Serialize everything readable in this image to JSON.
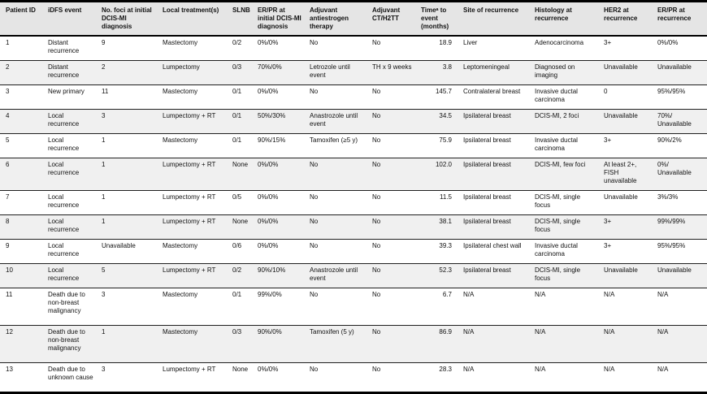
{
  "colors": {
    "header_bg": "#e5e5e5",
    "alt_row_bg": "#f0f0f0",
    "rule": "#1f1f1f"
  },
  "table": {
    "columns": [
      "Patient ID",
      "iDFS event",
      "No. foci at initial DCIS-MI diagnosis",
      "Local treatment(s)",
      "SLNB",
      "ER/PR at initial DCIS-MI diagnosis",
      "Adjuvant antiestrogen therapy",
      "Adjuvant CT/H2TT",
      "Timeᵃ to event (months)",
      "Site of recurrence",
      "Histology at recurrence",
      "HER2 at recurrence",
      "ER/PR at recurrence"
    ],
    "time_column_index": 8,
    "rows": [
      [
        "1",
        "Distant recurrence",
        "9",
        "Mastectomy",
        "0/2",
        "0%/0%",
        "No",
        "No",
        "18.9",
        "Liver",
        "Adenocarcinoma",
        "3+",
        "0%/0%"
      ],
      [
        "2",
        "Distant recurrence",
        "2",
        "Lumpectomy",
        "0/3",
        "70%/0%",
        "Letrozole until event",
        "TH x 9 weeks",
        "3.8",
        "Leptomeningeal",
        "Diagnosed on imaging",
        "Unavailable",
        "Unavailable"
      ],
      [
        "3",
        "New primary",
        "11",
        "Mastectomy",
        "0/1",
        "0%/0%",
        "No",
        "No",
        "145.7",
        "Contralateral breast",
        "Invasive ductal carcinoma",
        "0",
        "95%/95%"
      ],
      [
        "4",
        "Local recurrence",
        "3",
        "Lumpectomy + RT",
        "0/1",
        "50%/30%",
        "Anastrozole until event",
        "No",
        "34.5",
        "Ipsilateral breast",
        "DCIS-MI, 2 foci",
        "Unavailable",
        "70%/ Unavailable"
      ],
      [
        "5",
        "Local recurrence",
        "1",
        "Mastectomy",
        "0/1",
        "90%/15%",
        "Tamoxifen (≥5 y)",
        "No",
        "75.9",
        "Ipsilateral breast",
        "Invasive ductal carcinoma",
        "3+",
        "90%/2%"
      ],
      [
        "6",
        "Local recurrence",
        "1",
        "Lumpectomy + RT",
        "None",
        "0%/0%",
        "No",
        "No",
        "102.0",
        "Ipsilateral breast",
        "DCIS-MI, few foci",
        "At least 2+, FISH unavailable",
        "0%/ Unavailable"
      ],
      [
        "7",
        "Local recurrence",
        "1",
        "Lumpectomy + RT",
        "0/5",
        "0%/0%",
        "No",
        "No",
        "11.5",
        "Ipsilateral breast",
        "DCIS-MI, single focus",
        "Unavailable",
        "3%/3%"
      ],
      [
        "8",
        "Local recurrence",
        "1",
        "Lumpectomy + RT",
        "None",
        "0%/0%",
        "No",
        "No",
        "38.1",
        "Ipsilateral breast",
        "DCIS-MI, single focus",
        "3+",
        "99%/99%"
      ],
      [
        "9",
        "Local recurrence",
        "Unavailable",
        "Mastectomy",
        "0/6",
        "0%/0%",
        "No",
        "No",
        "39.3",
        "Ipsilateral chest wall",
        "Invasive ductal carcinoma",
        "3+",
        "95%/95%"
      ],
      [
        "10",
        "Local recurrence",
        "5",
        "Lumpectomy + RT",
        "0/2",
        "90%/10%",
        "Anastrozole until event",
        "No",
        "52.3",
        "Ipsilateral breast",
        "DCIS-MI, single focus",
        "Unavailable",
        "Unavailable"
      ],
      [
        "11",
        "Death due to non-breast malignancy",
        "3",
        "Mastectomy",
        "0/1",
        "99%/0%",
        "No",
        "No",
        "6.7",
        "N/A",
        "N/A",
        "N/A",
        "N/A"
      ],
      [
        "12",
        "Death due to non-breast malignancy",
        "1",
        "Mastectomy",
        "0/3",
        "90%/0%",
        "Tamoxifen (5 y)",
        "No",
        "86.9",
        "N/A",
        "N/A",
        "N/A",
        "N/A"
      ],
      [
        "13",
        "Death due to unknown cause",
        "3",
        "Lumpectomy + RT",
        "None",
        "0%/0%",
        "No",
        "No",
        "28.3",
        "N/A",
        "N/A",
        "N/A",
        "N/A"
      ]
    ],
    "tall_rows": [
      10,
      11,
      12
    ]
  }
}
